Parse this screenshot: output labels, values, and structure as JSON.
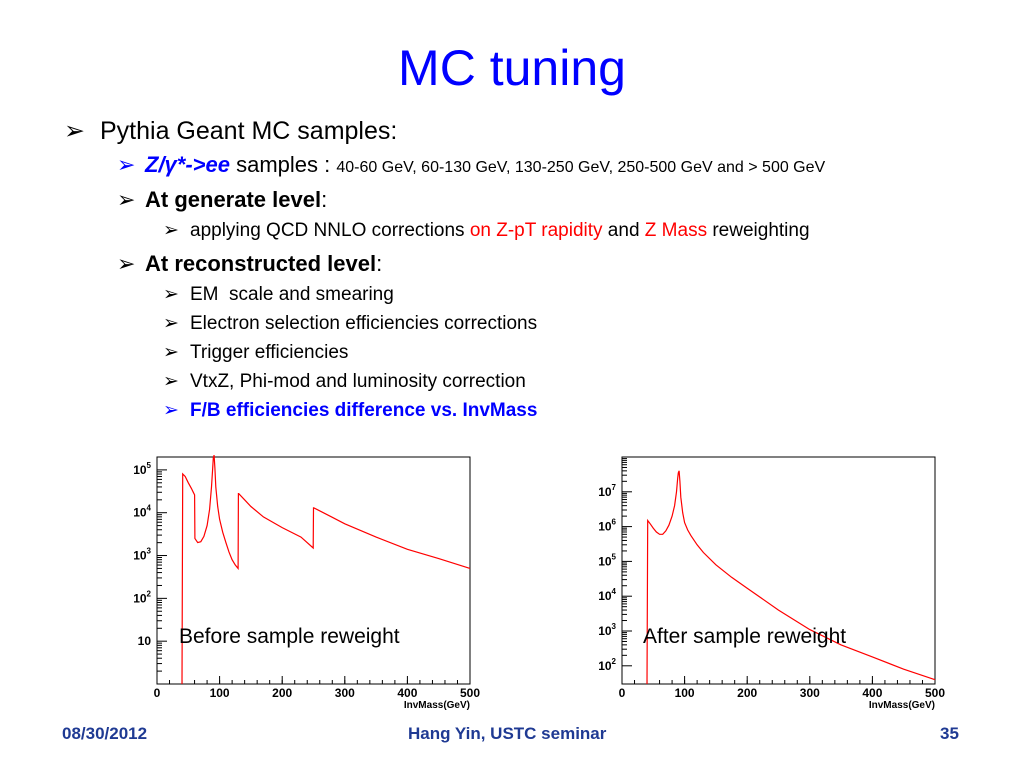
{
  "slide": {
    "title": "MC tuning",
    "bullets": {
      "b1": "Pythia Geant MC samples:",
      "b2_italic": "Z/γ*->ee",
      "b2_text": " samples : ",
      "b2_small": "40-60 GeV, 60-130 GeV, 130-250 GeV, 250-500 GeV and > 500 GeV",
      "b3_bold": "At generate level",
      "b3_colon": ":",
      "b3a_1": "applying QCD NNLO corrections ",
      "b3a_red1": "on Z-pT rapidity",
      "b3a_2": " and ",
      "b3a_red2": "Z Mass",
      "b3a_3": " reweighting",
      "b4_bold": "At reconstructed level",
      "b4_colon": ":",
      "b4a": "EM  scale and smearing",
      "b4b": "Electron selection efficiencies corrections",
      "b4c": "Trigger efficiencies",
      "b4d": "VtxZ, Phi-mod and luminosity correction",
      "b4e": "F/B efficiencies difference vs. InvMass"
    },
    "arrow_glyph": "➢",
    "captions": {
      "left": "Before sample reweight",
      "right": "After sample reweight"
    },
    "footer": {
      "date": "08/30/2012",
      "center": "Hang Yin, USTC seminar",
      "page": "35"
    }
  },
  "chart_data": [
    {
      "type": "line",
      "log_y": true,
      "xlabel": "InvMass(GeV)",
      "ylabel": "",
      "xlim": [
        0,
        500
      ],
      "ylim": [
        1,
        200000
      ],
      "x_ticks": [
        "0",
        "100",
        "200",
        "300",
        "400",
        "500"
      ],
      "y_ticks": [
        "10",
        "10^2",
        "10^3",
        "10^4",
        "10^5"
      ],
      "series_color": "#ff0000",
      "series": [
        {
          "x": [
            40,
            41,
            45,
            50,
            55,
            58,
            60,
            60.5,
            65,
            70,
            75,
            80,
            84,
            87,
            89,
            90,
            91.2,
            92.5,
            94,
            97,
            100,
            105,
            110,
            115,
            120,
            125,
            129.5,
            130,
            130.5,
            140,
            150,
            170,
            200,
            230,
            249.5,
            250,
            250.5,
            280,
            300,
            350,
            400,
            450,
            500
          ],
          "y": [
            1,
            80000,
            70000,
            50000,
            37000,
            30000,
            26000,
            2500,
            2000,
            2100,
            2800,
            5000,
            12000,
            40000,
            110000,
            190000,
            220000,
            110000,
            40000,
            14000,
            7000,
            3500,
            2000,
            1200,
            800,
            600,
            500,
            28000,
            28000,
            20000,
            14000,
            8000,
            4500,
            2700,
            1500,
            13000,
            13000,
            7800,
            5500,
            2700,
            1400,
            850,
            500
          ]
        }
      ]
    },
    {
      "type": "line",
      "log_y": true,
      "xlabel": "InvMass(GeV)",
      "ylabel": "",
      "xlim": [
        0,
        500
      ],
      "ylim": [
        30,
        100000000
      ],
      "x_ticks": [
        "0",
        "100",
        "200",
        "300",
        "400",
        "500"
      ],
      "y_ticks": [
        "10^2",
        "10^3",
        "10^4",
        "10^5",
        "10^6",
        "10^7"
      ],
      "series_color": "#ff0000",
      "series": [
        {
          "x": [
            40,
            41,
            45,
            50,
            55,
            60,
            65,
            70,
            75,
            80,
            84,
            87,
            89,
            90,
            91.2,
            92.5,
            94,
            97,
            100,
            105,
            110,
            120,
            130,
            150,
            175,
            200,
            250,
            300,
            350,
            400,
            450,
            500
          ],
          "y": [
            1,
            1500000,
            1200000,
            900000,
            700000,
            600000,
            600000,
            750000,
            1100000,
            2000000,
            4000000,
            10000000,
            25000000,
            35000000,
            40000000,
            20000000,
            7000000,
            2500000,
            1300000,
            800000,
            550000,
            300000,
            180000,
            80000,
            35000,
            17000,
            4000,
            1100,
            400,
            180,
            80,
            40
          ]
        }
      ]
    }
  ]
}
